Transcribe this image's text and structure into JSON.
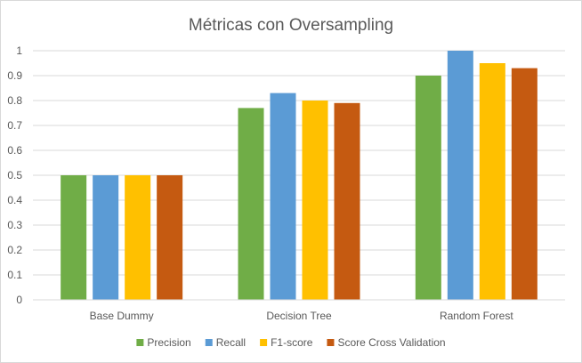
{
  "chart_data": {
    "type": "bar",
    "title": "Métricas con Oversampling",
    "xlabel": "",
    "ylabel": "",
    "categories": [
      "Base Dummy",
      "Decision Tree",
      "Random Forest"
    ],
    "series": [
      {
        "name": "Precision",
        "values": [
          0.5,
          0.77,
          0.9
        ],
        "color": "#70ad47"
      },
      {
        "name": "Recall",
        "values": [
          0.5,
          0.83,
          1.0
        ],
        "color": "#5b9bd5"
      },
      {
        "name": "F1-score",
        "values": [
          0.5,
          0.8,
          0.95
        ],
        "color": "#ffc000"
      },
      {
        "name": "Score Cross Validation",
        "values": [
          0.5,
          0.79,
          0.93
        ],
        "color": "#c55a11"
      }
    ],
    "yticks": [
      "0",
      "0.1",
      "0.2",
      "0.3",
      "0.4",
      "0.5",
      "0.6",
      "0.7",
      "0.8",
      "0.9",
      "1"
    ],
    "ylim": [
      0,
      1
    ],
    "grid": true,
    "gridline_color": "#d9d9d9",
    "legend_position": "bottom"
  }
}
